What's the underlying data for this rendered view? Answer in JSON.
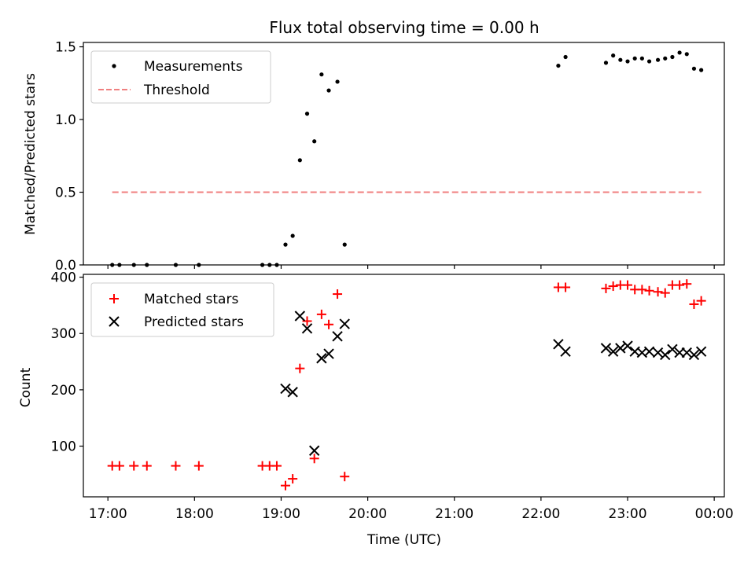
{
  "figure": {
    "title": "Flux total observing time = 0.00 h"
  },
  "chart_data": [
    {
      "type": "scatter",
      "ylabel": "Matched/Predicted stars",
      "ylim": [
        0,
        1.53
      ],
      "yticks": [
        0.0,
        0.5,
        1.0,
        1.5
      ],
      "ytick_labels": [
        "0.0",
        "0.5",
        "1.0",
        "1.5"
      ],
      "legend": {
        "placement": "top-left",
        "entries": [
          "Measurements",
          "Threshold"
        ]
      },
      "series": [
        {
          "name": "Measurements",
          "kind": "points",
          "color": "#000000",
          "x": [
            "17:03",
            "17:08",
            "17:18",
            "17:27",
            "17:47",
            "18:03",
            "18:47",
            "18:52",
            "18:57",
            "19:03",
            "19:08",
            "19:13",
            "19:18",
            "19:23",
            "19:28",
            "19:33",
            "19:39",
            "19:44",
            "19:49",
            "22:12",
            "22:17",
            "22:45",
            "22:50",
            "22:55",
            "23:00",
            "23:05",
            "23:10",
            "23:15",
            "23:21",
            "23:26",
            "23:31",
            "23:36",
            "23:41",
            "23:46",
            "23:51"
          ],
          "y": [
            0.0,
            0.0,
            0.0,
            0.0,
            0.0,
            0.0,
            0.0,
            0.0,
            0.0,
            0.14,
            0.2,
            0.72,
            1.04,
            0.85,
            1.31,
            1.2,
            1.26,
            0.14,
            null,
            1.37,
            1.43,
            1.39,
            1.44,
            1.41,
            1.4,
            1.42,
            1.42,
            1.4,
            1.41,
            1.42,
            1.43,
            1.46,
            1.45,
            1.35,
            1.34
          ]
        },
        {
          "name": "Threshold",
          "kind": "dashed-line",
          "color": "#f08080",
          "x": [
            "17:03",
            "23:51"
          ],
          "y": [
            0.5,
            0.5
          ]
        }
      ]
    },
    {
      "type": "scatter",
      "xlabel": "Time (UTC)",
      "ylabel": "Count",
      "ylim": [
        10,
        405
      ],
      "yticks": [
        100,
        200,
        300,
        400
      ],
      "ytick_labels": [
        "100",
        "200",
        "300",
        "400"
      ],
      "xlim": [
        "16:43",
        "00:07"
      ],
      "xticks": [
        "17:00",
        "18:00",
        "19:00",
        "20:00",
        "21:00",
        "22:00",
        "23:00",
        "00:00"
      ],
      "xtick_labels": [
        "17:00",
        "18:00",
        "19:00",
        "20:00",
        "21:00",
        "22:00",
        "23:00",
        "00:00"
      ],
      "legend": {
        "placement": "top-left",
        "entries": [
          "Matched stars",
          "Predicted stars"
        ]
      },
      "series": [
        {
          "name": "Matched stars",
          "marker": "plus",
          "color": "#ff0000",
          "x": [
            "17:03",
            "17:08",
            "17:18",
            "17:27",
            "17:47",
            "18:03",
            "18:47",
            "18:52",
            "18:57",
            "19:03",
            "19:08",
            "19:13",
            "19:18",
            "19:23",
            "19:28",
            "19:33",
            "19:39",
            "19:44",
            "19:49",
            "22:12",
            "22:17",
            "22:45",
            "22:50",
            "22:55",
            "23:00",
            "23:05",
            "23:10",
            "23:15",
            "23:21",
            "23:26",
            "23:31",
            "23:36",
            "23:41",
            "23:46",
            "23:51",
            "23:54"
          ],
          "y": [
            65,
            65,
            65,
            65,
            65,
            65,
            65,
            65,
            65,
            30,
            42,
            238,
            322,
            78,
            334,
            316,
            370,
            46,
            null,
            382,
            382,
            380,
            384,
            386,
            386,
            378,
            378,
            376,
            374,
            372,
            386,
            386,
            388,
            352,
            358,
            null
          ]
        },
        {
          "name": "Predicted stars",
          "marker": "x",
          "color": "#000000",
          "x": [
            "19:03",
            "19:08",
            "19:13",
            "19:18",
            "19:23",
            "19:28",
            "19:33",
            "19:39",
            "19:44",
            "22:12",
            "22:17",
            "22:45",
            "22:50",
            "22:55",
            "23:00",
            "23:05",
            "23:10",
            "23:15",
            "23:21",
            "23:26",
            "23:31",
            "23:36",
            "23:41",
            "23:46",
            "23:51"
          ],
          "y": [
            202,
            196,
            331,
            309,
            92,
            256,
            264,
            295,
            317,
            281,
            268,
            274,
            268,
            274,
            278,
            268,
            266,
            268,
            266,
            262,
            272,
            266,
            266,
            262,
            268
          ]
        }
      ]
    }
  ]
}
